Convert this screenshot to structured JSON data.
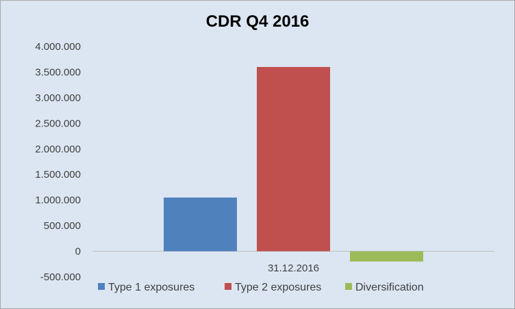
{
  "chart_data": {
    "type": "bar",
    "title": "CDR Q4 2016",
    "categories": [
      "31.12.2016"
    ],
    "series": [
      {
        "name": "Type 1 exposures",
        "values": [
          1050000
        ],
        "color": "#4f81bd"
      },
      {
        "name": "Type 2 exposures",
        "values": [
          3600000
        ],
        "color": "#c0504d"
      },
      {
        "name": "Diversification",
        "values": [
          -200000
        ],
        "color": "#9bbb59"
      }
    ],
    "ylim": [
      -500000,
      4000000
    ],
    "yticks": [
      {
        "value": 4000000,
        "label": "4.000.000"
      },
      {
        "value": 3500000,
        "label": "3.500.000"
      },
      {
        "value": 3000000,
        "label": "3.000.000"
      },
      {
        "value": 2500000,
        "label": "2.500.000"
      },
      {
        "value": 2000000,
        "label": "2.000.000"
      },
      {
        "value": 1500000,
        "label": "1.500.000"
      },
      {
        "value": 1000000,
        "label": "1.000.000"
      },
      {
        "value": 500000,
        "label": "500.000"
      },
      {
        "value": 0,
        "label": "0"
      },
      {
        "value": -500000,
        "label": "-500.000"
      }
    ],
    "xlabel": "",
    "ylabel": "",
    "grid": false,
    "legend_position": "bottom"
  }
}
